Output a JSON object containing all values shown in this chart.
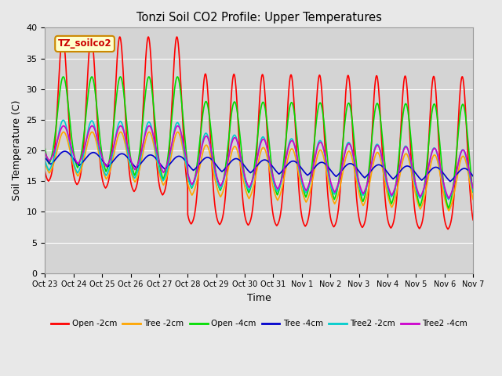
{
  "title": "Tonzi Soil CO2 Profile: Upper Temperatures",
  "xlabel": "Time",
  "ylabel": "Soil Temperature (C)",
  "ylim": [
    0,
    40
  ],
  "background_color": "#e8e8e8",
  "plot_bg_color": "#d4d4d4",
  "grid_color": "#ffffff",
  "series": [
    {
      "label": "Open -2cm",
      "color": "#ff0000"
    },
    {
      "label": "Tree -2cm",
      "color": "#ffa500"
    },
    {
      "label": "Open -4cm",
      "color": "#00dd00"
    },
    {
      "label": "Tree -4cm",
      "color": "#0000cc"
    },
    {
      "label": "Tree2 -2cm",
      "color": "#00cccc"
    },
    {
      "label": "Tree2 -4cm",
      "color": "#cc00cc"
    }
  ],
  "xtick_labels": [
    "Oct 23",
    "Oct 24",
    "Oct 25",
    "Oct 26",
    "Oct 27",
    "Oct 28",
    "Oct 29",
    "Oct 30",
    "Oct 31",
    "Nov 1",
    "Nov 2",
    "Nov 3",
    "Nov 4",
    "Nov 5",
    "Nov 6",
    "Nov 7"
  ],
  "annotation_text": "TZ_soilco2",
  "annotation_bg": "#ffffcc",
  "annotation_border": "#cc8800"
}
